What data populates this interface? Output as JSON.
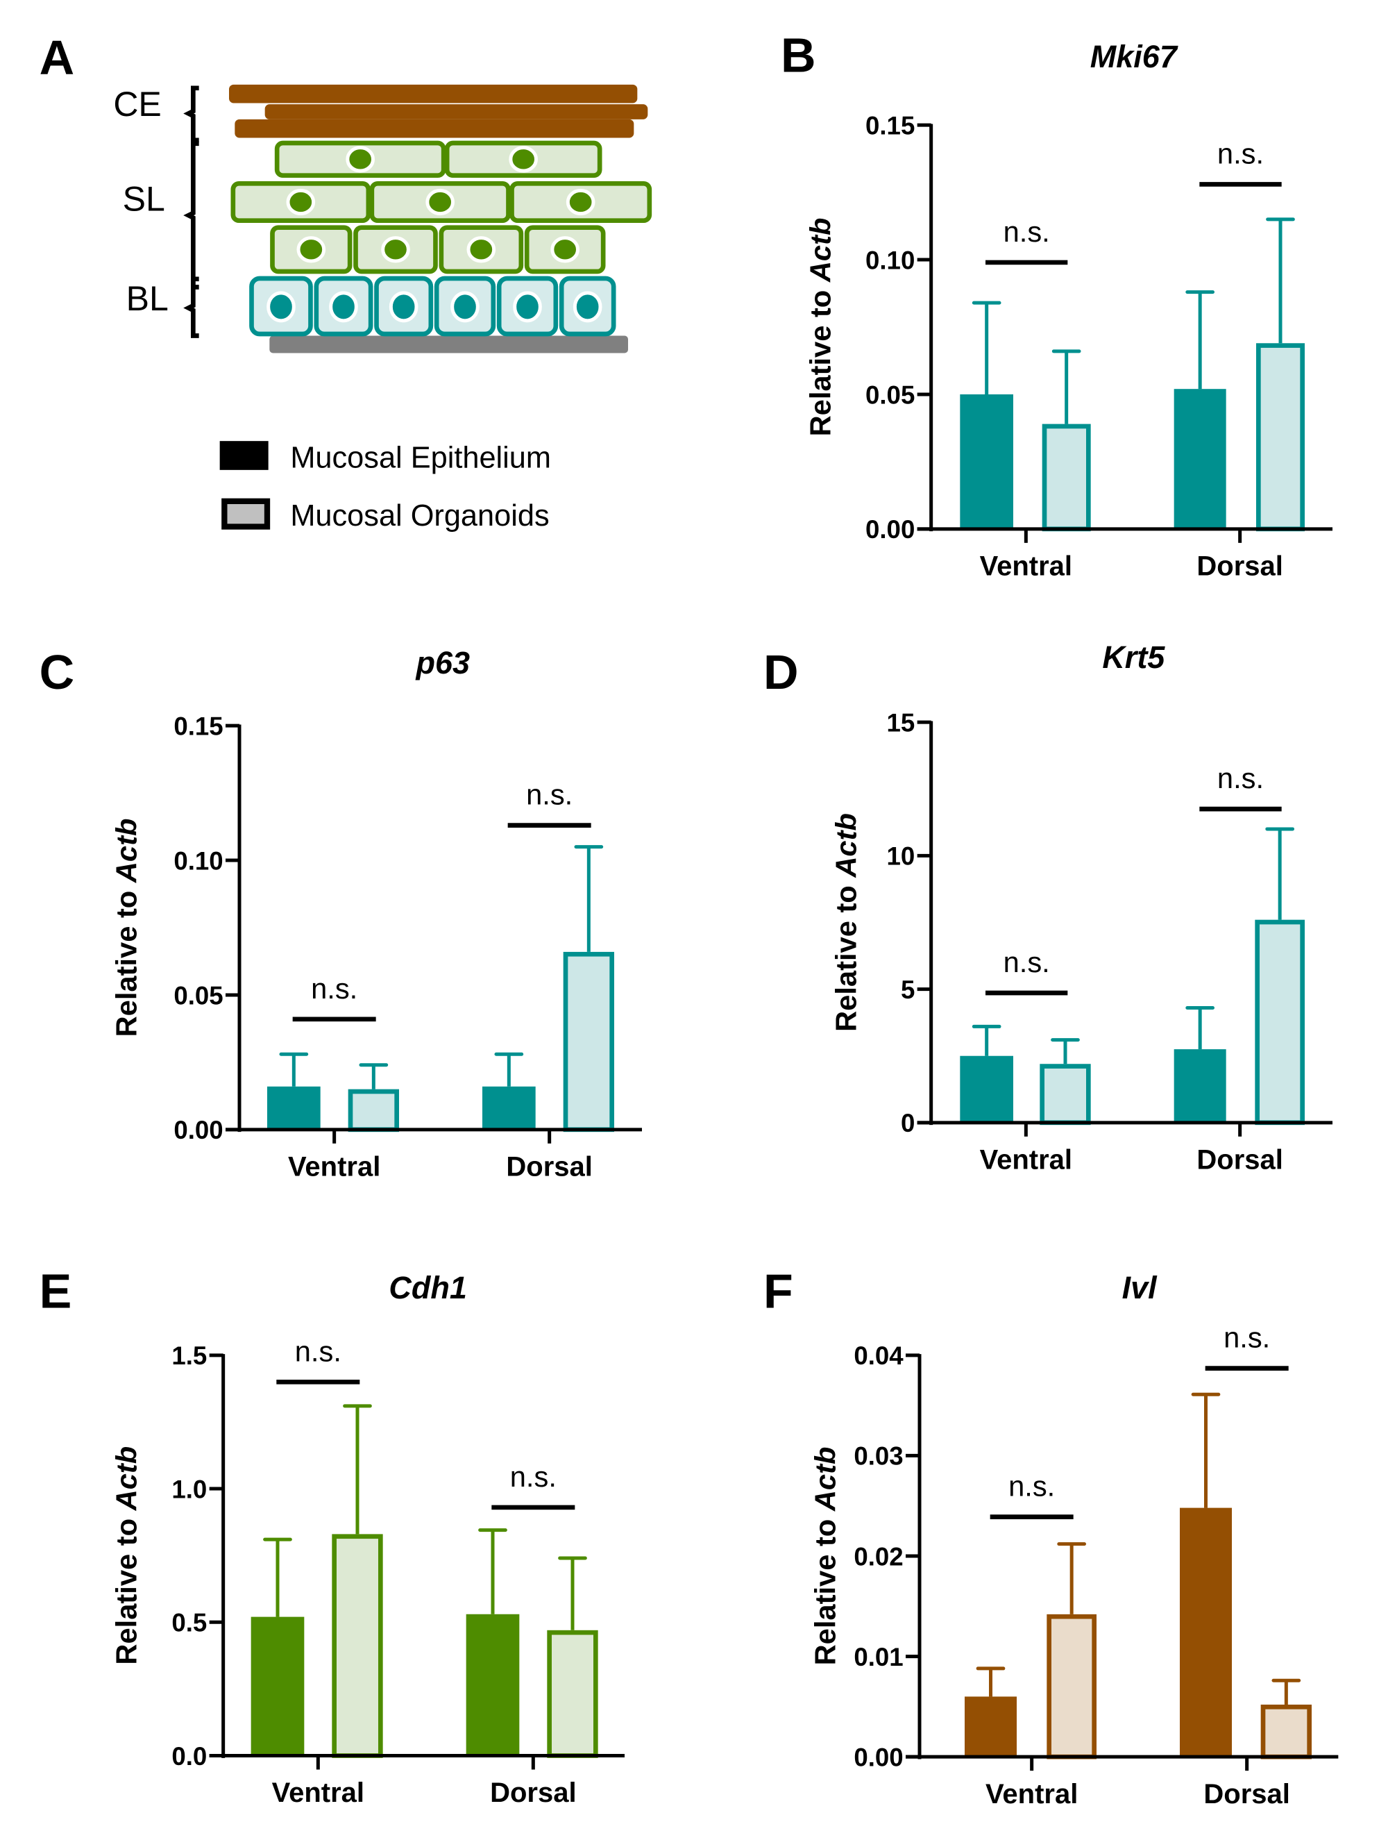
{
  "panel_a": {
    "letter": "A",
    "layers": [
      "CE",
      "SL",
      "BL"
    ],
    "legend": [
      {
        "label": "Mucosal Epithelium",
        "fill": "#000000"
      },
      {
        "label": "Mucosal Organoids",
        "fill": "#c0c0c0"
      }
    ],
    "colors": {
      "ce": "#944f03",
      "sl_stroke": "#4e8c00",
      "sl_fill": "#dde9d3",
      "bl_stroke": "#00908f",
      "bl_fill": "#d6ebeb",
      "base": "#808080"
    }
  },
  "chart_data": [
    {
      "letter": "B",
      "type": "bar",
      "title": "Mki67",
      "ylabel_prefix": "Relative to ",
      "ylabel_italic": "Actb",
      "categories": [
        "Ventral",
        "Dorsal"
      ],
      "ylim": [
        0,
        0.15
      ],
      "yticks": [
        "0.00",
        "0.05",
        "0.10",
        "0.15"
      ],
      "series": [
        {
          "name": "Mucosal Epithelium",
          "values": [
            0.05,
            0.052
          ],
          "errors": [
            0.084,
            0.088
          ]
        },
        {
          "name": "Mucosal Organoids",
          "values": [
            0.039,
            0.069
          ],
          "errors": [
            0.066,
            0.115
          ]
        }
      ],
      "significance": [
        {
          "label": "n.s.",
          "level": 0.099
        },
        {
          "label": "n.s.",
          "level": 0.128
        }
      ],
      "color": "#00908f",
      "light": "#cde7e7"
    },
    {
      "letter": "C",
      "type": "bar",
      "title": "p63",
      "ylabel_prefix": "Relative to ",
      "ylabel_italic": "Actb",
      "categories": [
        "Ventral",
        "Dorsal"
      ],
      "ylim": [
        0,
        0.15
      ],
      "yticks": [
        "0.00",
        "0.05",
        "0.10",
        "0.15"
      ],
      "series": [
        {
          "name": "Mucosal Epithelium",
          "values": [
            0.016,
            0.016
          ],
          "errors": [
            0.028,
            0.028
          ]
        },
        {
          "name": "Mucosal Organoids",
          "values": [
            0.015,
            0.066
          ],
          "errors": [
            0.024,
            0.105
          ]
        }
      ],
      "significance": [
        {
          "label": "n.s.",
          "level": 0.041
        },
        {
          "label": "n.s.",
          "level": 0.113
        }
      ],
      "color": "#00908f",
      "light": "#cde7e7"
    },
    {
      "letter": "D",
      "type": "bar",
      "title": "Krt5",
      "ylabel_prefix": "Relative to ",
      "ylabel_italic": "Actb",
      "categories": [
        "Ventral",
        "Dorsal"
      ],
      "ylim": [
        0,
        15
      ],
      "yticks": [
        "0",
        "5",
        "10",
        "15"
      ],
      "series": [
        {
          "name": "Mucosal Epithelium",
          "values": [
            2.5,
            2.75
          ],
          "errors": [
            3.6,
            4.3
          ]
        },
        {
          "name": "Mucosal Organoids",
          "values": [
            2.2,
            7.6
          ],
          "errors": [
            3.1,
            11.0
          ]
        }
      ],
      "significance": [
        {
          "label": "n.s.",
          "level": 4.86
        },
        {
          "label": "n.s.",
          "level": 11.75
        }
      ],
      "color": "#00908f",
      "light": "#cde7e7"
    },
    {
      "letter": "E",
      "type": "bar",
      "title": "Cdh1",
      "ylabel_prefix": "Relative to ",
      "ylabel_italic": "Actb",
      "categories": [
        "Ventral",
        "Dorsal"
      ],
      "ylim": [
        0,
        1.5
      ],
      "yticks": [
        "0.0",
        "0.5",
        "1.0",
        "1.5"
      ],
      "series": [
        {
          "name": "Mucosal Epithelium",
          "values": [
            0.52,
            0.53
          ],
          "errors": [
            0.81,
            0.845
          ]
        },
        {
          "name": "Mucosal Organoids",
          "values": [
            0.83,
            0.47
          ],
          "errors": [
            1.31,
            0.74
          ]
        }
      ],
      "significance": [
        {
          "label": "n.s.",
          "level": 1.4
        },
        {
          "label": "n.s.",
          "level": 0.93
        }
      ],
      "color": "#4e8c00",
      "light": "#dde9d3"
    },
    {
      "letter": "F",
      "type": "bar",
      "title": "Ivl",
      "ylabel_prefix": "Relative to ",
      "ylabel_italic": "Actb",
      "categories": [
        "Ventral",
        "Dorsal"
      ],
      "ylim": [
        0,
        0.04
      ],
      "yticks": [
        "0.00",
        "0.01",
        "0.02",
        "0.03",
        "0.04"
      ],
      "series": [
        {
          "name": "Mucosal Epithelium",
          "values": [
            0.006,
            0.0248
          ],
          "errors": [
            0.0088,
            0.0361
          ]
        },
        {
          "name": "Mucosal Organoids",
          "values": [
            0.0142,
            0.0052
          ],
          "errors": [
            0.0212,
            0.0076
          ]
        }
      ],
      "significance": [
        {
          "label": "n.s.",
          "level": 0.0239
        },
        {
          "label": "n.s.",
          "level": 0.0387
        }
      ],
      "color": "#944f03",
      "light": "#eadccb"
    }
  ]
}
